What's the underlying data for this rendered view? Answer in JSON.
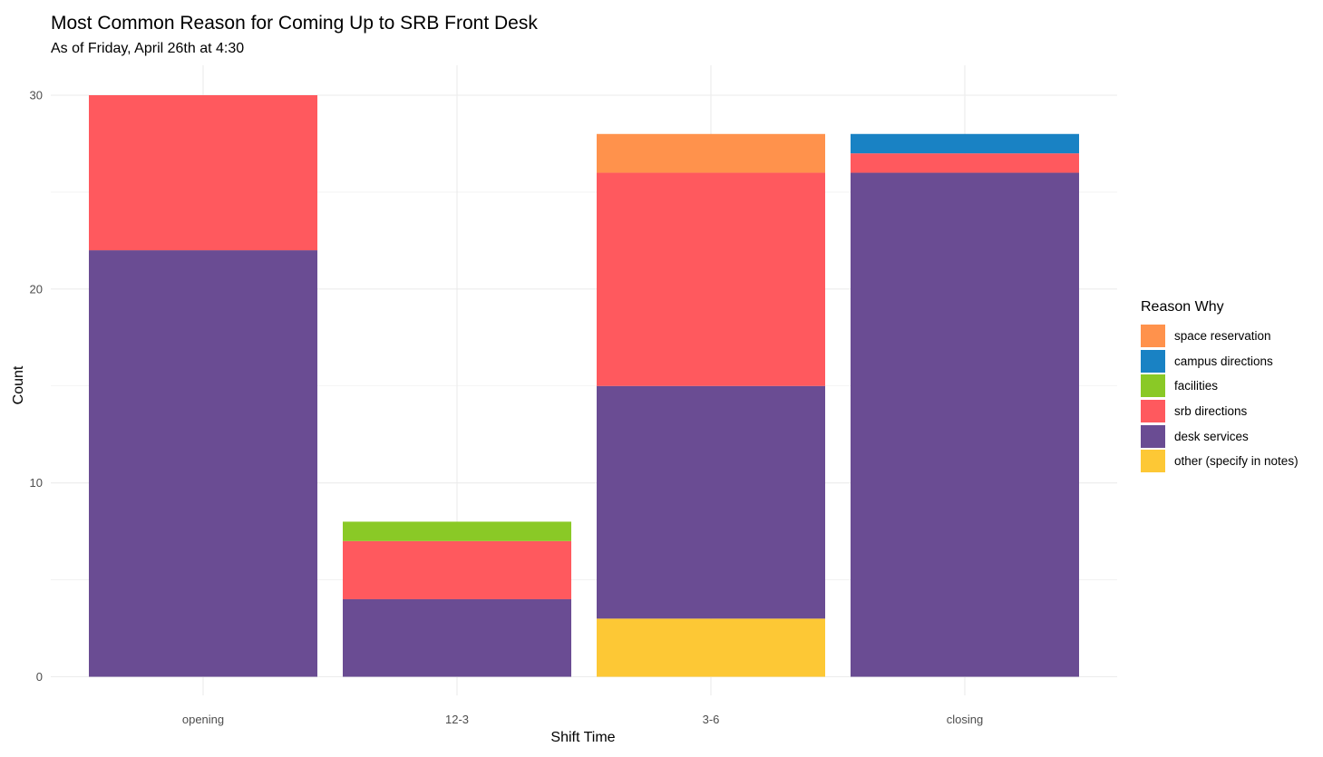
{
  "chart_data": {
    "type": "bar",
    "stacked": true,
    "title": "Most Common Reason for Coming Up to SRB Front Desk",
    "subtitle": "As of Friday, April 26th at 4:30",
    "xlabel": "Shift Time",
    "ylabel": "Count",
    "ylim": [
      0,
      30
    ],
    "yticks": [
      0,
      10,
      20,
      30
    ],
    "grid": true,
    "legend_position": "right",
    "legend_title": "Reason Why",
    "categories": [
      "opening",
      "12-3",
      "3-6",
      "closing"
    ],
    "series": [
      {
        "name": "other (specify in notes)",
        "color": "#FDC835",
        "values": [
          0,
          0,
          3,
          0
        ]
      },
      {
        "name": "desk services",
        "color": "#6A4C93",
        "values": [
          22,
          4,
          12,
          26
        ]
      },
      {
        "name": "srb directions",
        "color": "#FF595E",
        "values": [
          8,
          3,
          11,
          1
        ]
      },
      {
        "name": "facilities",
        "color": "#8AC926",
        "values": [
          0,
          1,
          0,
          0
        ]
      },
      {
        "name": "campus directions",
        "color": "#1982C4",
        "values": [
          0,
          0,
          0,
          1
        ]
      },
      {
        "name": "space reservation",
        "color": "#FF924C",
        "values": [
          0,
          0,
          2,
          0
        ]
      }
    ],
    "legend_order": [
      "space reservation",
      "campus directions",
      "facilities",
      "srb directions",
      "desk services",
      "other (specify in notes)"
    ]
  }
}
